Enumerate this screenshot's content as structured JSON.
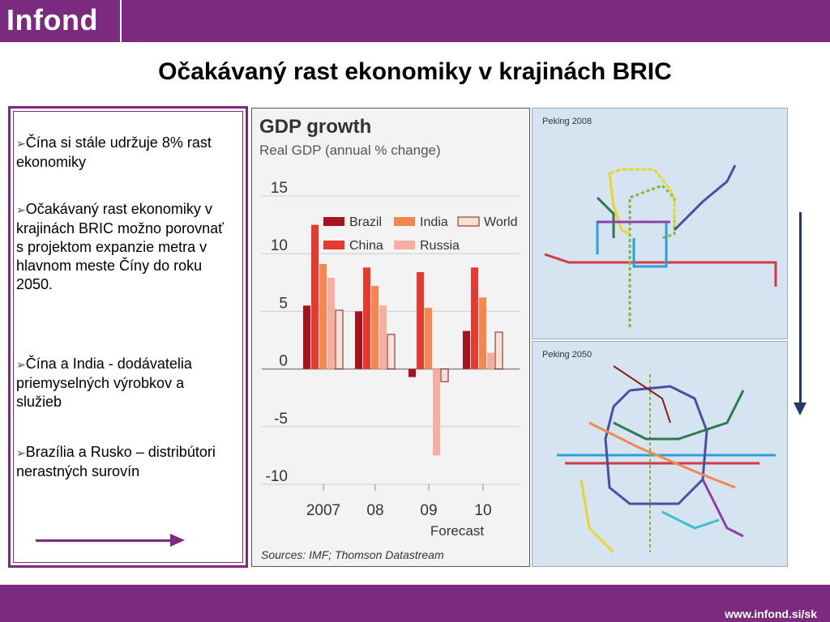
{
  "header": {
    "logo": "Infond"
  },
  "slide": {
    "title": "Očakávaný rast ekonomiky v krajinách BRIC"
  },
  "bullets": [
    {
      "text": "Čína si stále udržuje 8% rast ekonomiky"
    },
    {
      "text": "Očakávaný rast ekonomiky v krajinách BRIC možno porovnať s projektom expanzie metra v hlavnom meste Číny do roku 2050."
    },
    {
      "text": "Čína a India - dodávatelia priemyselných výrobkov a služieb"
    },
    {
      "text": "Brazília a Rusko – distribútori nerastných surovín"
    }
  ],
  "maps": {
    "top_label": "Peking 2008",
    "bottom_label": "Peking 2050"
  },
  "footer": {
    "url": "www.infond.si/sk"
  },
  "colors": {
    "brand": "#7b2a7f",
    "arrow_down": "#1f3a66"
  },
  "chart_data": {
    "type": "bar",
    "title": "GDP growth",
    "subtitle": "Real GDP (annual % change)",
    "categories": [
      "2007",
      "08",
      "09",
      "10"
    ],
    "xlabel_extra": "Forecast",
    "ylim": [
      -10,
      15
    ],
    "yticks": [
      15,
      10,
      5,
      0,
      -5,
      -10
    ],
    "ytick_labels": [
      "15",
      "10",
      "5",
      "0",
      "-5",
      "-10"
    ],
    "source": "Sources: IMF; Thomson Datastream",
    "series": [
      {
        "name": "Brazil",
        "color": "#a8121c",
        "values": [
          5.5,
          5.0,
          -0.7,
          3.3
        ]
      },
      {
        "name": "China",
        "color": "#e43a2f",
        "values": [
          12.5,
          8.8,
          8.4,
          8.8
        ]
      },
      {
        "name": "India",
        "color": "#f4874e",
        "values": [
          9.1,
          7.2,
          5.3,
          6.2
        ]
      },
      {
        "name": "Russia",
        "color": "#f6aea0",
        "values": [
          7.9,
          5.5,
          -7.5,
          1.4
        ]
      },
      {
        "name": "World",
        "color": "#fcdfd3",
        "values": [
          5.1,
          3.0,
          -1.1,
          3.2
        ]
      }
    ],
    "legend": "top-right",
    "grid": true
  }
}
